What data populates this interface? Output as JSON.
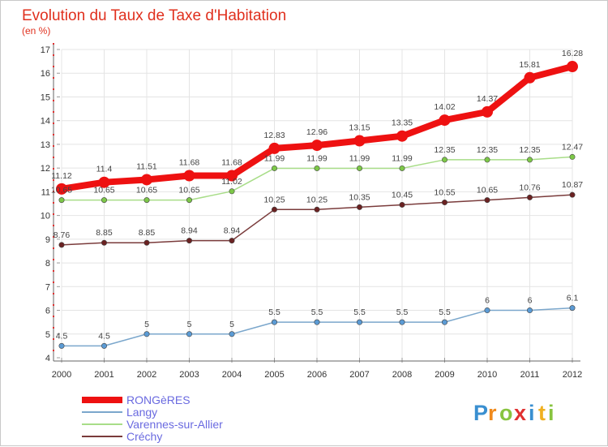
{
  "chart_data": {
    "type": "line",
    "title": "Evolution du Taux de Taxe d'Habitation",
    "ylabel": "(en %)",
    "xlabel": "",
    "x": [
      "2000",
      "2001",
      "2002",
      "2003",
      "2004",
      "2005",
      "2006",
      "2007",
      "2008",
      "2009",
      "2010",
      "2011",
      "2012"
    ],
    "ylim": [
      4,
      17
    ],
    "yticks": [
      4,
      5,
      6,
      7,
      8,
      9,
      10,
      11,
      12,
      13,
      14,
      15,
      16,
      17
    ],
    "grid": true,
    "legend_position": "bottom-left",
    "series": [
      {
        "name": "RONGèRES",
        "color": "#ee1111",
        "marker": "#ee1111",
        "emphasis": true,
        "values": [
          11.12,
          11.4,
          11.51,
          11.68,
          11.68,
          12.83,
          12.96,
          13.15,
          13.35,
          14.02,
          14.37,
          15.81,
          16.28
        ],
        "labels": [
          "11.12",
          "11.4",
          "11.51",
          "11.68",
          "11.68",
          "12.83",
          "12.96",
          "13.15",
          "13.35",
          "14.02",
          "14.37",
          "15.81",
          "16.28"
        ]
      },
      {
        "name": "Langy",
        "color": "#7ba7cc",
        "marker": "#5b9bd5",
        "values": [
          4.5,
          4.5,
          5,
          5,
          5,
          5.5,
          5.5,
          5.5,
          5.5,
          5.5,
          6,
          6,
          6.1
        ],
        "labels": [
          "4.5",
          "4.5",
          "5",
          "5",
          "5",
          "5.5",
          "5.5",
          "5.5",
          "5.5",
          "5.5",
          "6",
          "6",
          "6.1"
        ]
      },
      {
        "name": "Varennes-sur-Allier",
        "color": "#a8dd88",
        "marker": "#7dc848",
        "values": [
          10.65,
          10.65,
          10.65,
          10.65,
          11.02,
          11.99,
          11.99,
          11.99,
          11.99,
          12.35,
          12.35,
          12.35,
          12.47
        ],
        "labels": [
          "10.65",
          "10.65",
          "10.65",
          "10.65",
          "11.02",
          "11.99",
          "11.99",
          "11.99",
          "11.99",
          "12.35",
          "12.35",
          "12.35",
          "12.47"
        ]
      },
      {
        "name": "Créchy",
        "color": "#7a3b3b",
        "marker": "#6b2222",
        "values": [
          8.76,
          8.85,
          8.85,
          8.94,
          8.94,
          10.25,
          10.25,
          10.35,
          10.45,
          10.55,
          10.65,
          10.76,
          10.87
        ],
        "labels": [
          "8.76",
          "8.85",
          "8.85",
          "8.94",
          "8.94",
          "10.25",
          "10.25",
          "10.35",
          "10.45",
          "10.55",
          "10.65",
          "10.76",
          "10.87"
        ]
      }
    ]
  },
  "logo": {
    "letters": [
      "P",
      "r",
      "o",
      "x",
      "i",
      "t",
      "i"
    ],
    "colors": [
      "#3a8fd0",
      "#f08a1c",
      "#88c440",
      "#e03030",
      "#3a8fd0",
      "#f0b020",
      "#88c440"
    ]
  }
}
